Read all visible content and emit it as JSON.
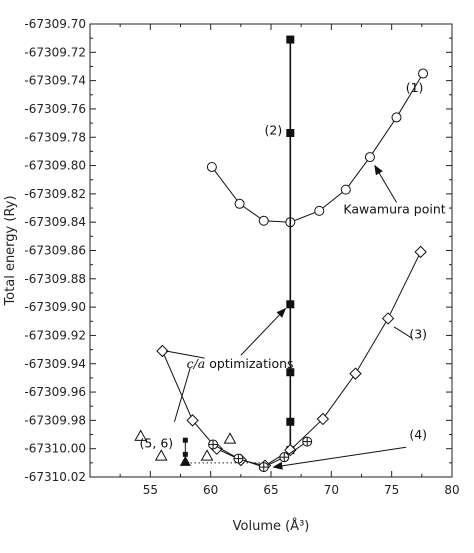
{
  "chart_data": {
    "type": "scatter",
    "title": "",
    "xlabel": "Volume (Å³)",
    "ylabel": "Total energy (Ry)",
    "xlim": [
      50,
      80
    ],
    "ylim": [
      -67310.02,
      -67309.7
    ],
    "xticks": [
      55,
      60,
      65,
      70,
      75,
      80
    ],
    "xtick_labels": [
      "55",
      "60",
      "65",
      "70",
      "75",
      "80"
    ],
    "yticks": [
      -67309.7,
      -67309.72,
      -67309.74,
      -67309.76,
      -67309.78,
      -67309.8,
      -67309.82,
      -67309.84,
      -67309.86,
      -67309.88,
      -67309.9,
      -67309.92,
      -67309.94,
      -67309.96,
      -67309.98,
      -67310.0,
      -67310.02
    ],
    "ytick_labels": [
      "-67309.70",
      "-67309.72",
      "-67309.74",
      "-67309.76",
      "-67309.78",
      "-67309.80",
      "-67309.82",
      "-67309.84",
      "-67309.86",
      "-67309.88",
      "-67309.90",
      "-67309.92",
      "-67309.94",
      "-67309.96",
      "-67309.98",
      "-67310.00",
      "-67310.02"
    ],
    "grid": false,
    "series": [
      {
        "name": "(1)",
        "marker": "circle",
        "line": true,
        "x": [
          60.1,
          62.4,
          64.4,
          66.6,
          69.0,
          71.2,
          73.2,
          75.4,
          77.6
        ],
        "y": [
          -67309.801,
          -67309.827,
          -67309.839,
          -67309.84,
          -67309.832,
          -67309.817,
          -67309.794,
          -67309.766,
          -67309.735
        ]
      },
      {
        "name": "(2)",
        "marker": "square",
        "line": true,
        "x": [
          66.6,
          66.6,
          66.6,
          66.6,
          66.6,
          66.6
        ],
        "y": [
          -67309.711,
          -67309.777,
          -67309.898,
          -67309.946,
          -67309.981,
          -67310.001
        ]
      },
      {
        "name": "(3)",
        "marker": "diamond",
        "line": true,
        "x": [
          56.0,
          58.5,
          60.5,
          62.5,
          64.5,
          66.6,
          69.3,
          72.0,
          74.7,
          77.4
        ],
        "y": [
          -67309.931,
          -67309.98,
          -67310.0,
          -67310.008,
          -67310.012,
          -67310.001,
          -67309.979,
          -67309.947,
          -67309.908,
          -67309.861
        ]
      },
      {
        "name": "(4)",
        "marker": "crossed-circle",
        "line": true,
        "x": [
          60.2,
          62.3,
          64.4,
          66.1,
          68.0
        ],
        "y": [
          -67309.997,
          -67310.007,
          -67310.013,
          -67310.006,
          -67309.995
        ]
      },
      {
        "name": "(5, 6)",
        "marker": "triangle",
        "line": false,
        "x": [
          54.2,
          55.9,
          59.7,
          61.6
        ],
        "y": [
          -67309.991,
          -67310.005,
          -67310.005,
          -67309.993
        ]
      },
      {
        "name": "(5, 6)",
        "marker": "small-square",
        "line": true,
        "x": [
          57.9,
          57.9,
          57.9
        ],
        "y": [
          -67309.994,
          -67310.004,
          -67310.01
        ]
      },
      {
        "name": "(5, 6)",
        "marker": "filled-triangle",
        "line": false,
        "x": [
          57.9
        ],
        "y": [
          -67310.009
        ]
      }
    ],
    "annotations": [
      {
        "text": "(1)",
        "x": 76.9,
        "y": -67309.748
      },
      {
        "text": "(2)",
        "x": 65.2,
        "y": -67309.778
      },
      {
        "text": "Kawamura point",
        "x": 71.0,
        "y": -67309.834
      },
      {
        "text": "(3)",
        "x": 77.2,
        "y": -67309.922
      },
      {
        "text": "c/a optimizations",
        "x": 59.0,
        "y": -67309.943
      },
      {
        "text": "(4)",
        "x": 77.2,
        "y": -67309.993
      },
      {
        "text": "(5, 6)",
        "x": 55.5,
        "y": -67309.999
      }
    ],
    "reference_line": {
      "x_from": 58.0,
      "x_to": 64.3,
      "y": -67310.01,
      "style": "dotted"
    }
  }
}
